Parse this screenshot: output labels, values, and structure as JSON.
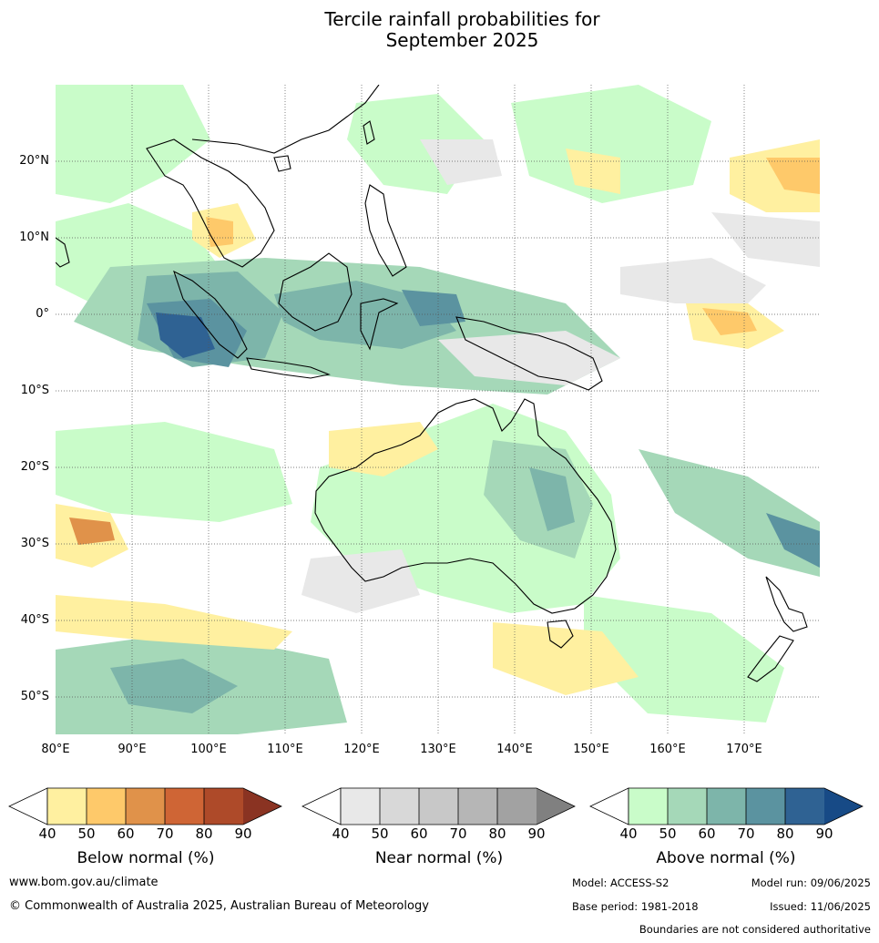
{
  "title_line1": "Tercile rainfall probabilities for",
  "title_line2": "September 2025",
  "map": {
    "lat_labels": [
      "20°N",
      "10°N",
      "0°",
      "10°S",
      "20°S",
      "30°S",
      "40°S",
      "50°S"
    ],
    "lon_labels": [
      "80°E",
      "90°E",
      "100°E",
      "110°E",
      "120°E",
      "130°E",
      "140°E",
      "150°E",
      "160°E",
      "170°E"
    ],
    "extent": {
      "lon": [
        80,
        180
      ],
      "lat": [
        -55,
        30
      ]
    }
  },
  "legend": {
    "below": {
      "label": "Below normal (%)",
      "ticks": [
        "40",
        "50",
        "60",
        "70",
        "80",
        "90"
      ],
      "colors": [
        "#fff0a0",
        "#fec96a",
        "#e0924a",
        "#cf6535",
        "#ae4a29",
        "#8a3322"
      ]
    },
    "near": {
      "label": "Near normal (%)",
      "ticks": [
        "40",
        "50",
        "60",
        "70",
        "80",
        "90"
      ],
      "colors": [
        "#e8e8e8",
        "#d8d8d8",
        "#c8c8c8",
        "#b6b6b6",
        "#a2a2a2",
        "#808080"
      ]
    },
    "above": {
      "label": "Above normal (%)",
      "ticks": [
        "40",
        "50",
        "60",
        "70",
        "80",
        "90"
      ],
      "colors": [
        "#c9fcc9",
        "#a5d8b8",
        "#7db5aa",
        "#5b93a0",
        "#2f6293",
        "#174a86"
      ]
    }
  },
  "footer": {
    "website": "www.bom.gov.au/climate",
    "copyright": "© Commonwealth of Australia 2025, Australian Bureau of Meteorology",
    "model": "Model: ACCESS-S2",
    "model_run": "Model run: 09/06/2025",
    "base_period": "Base period: 1981-2018",
    "issued": "Issued: 11/06/2025",
    "disclaimer": "Boundaries are not considered authoritative"
  }
}
